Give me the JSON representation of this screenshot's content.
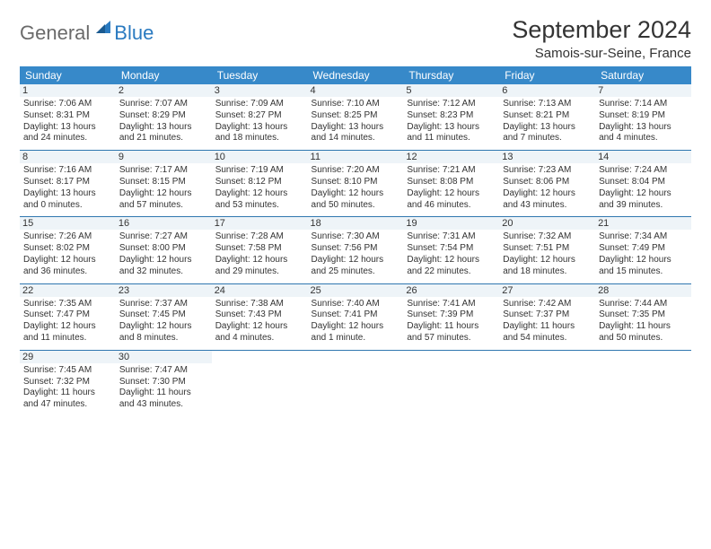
{
  "logo": {
    "general": "General",
    "blue": "Blue"
  },
  "title": "September 2024",
  "location": "Samois-sur-Seine, France",
  "weekdays": [
    "Sunday",
    "Monday",
    "Tuesday",
    "Wednesday",
    "Thursday",
    "Friday",
    "Saturday"
  ],
  "colors": {
    "header_bg": "#3789c9",
    "header_text": "#ffffff",
    "daynum_bg": "#eef4f8",
    "rule": "#3077b0",
    "logo_gray": "#6a6a6a",
    "logo_blue": "#2a7ac0",
    "text": "#333333",
    "background": "#ffffff"
  },
  "days": [
    {
      "n": "1",
      "sr": "7:06 AM",
      "ss": "8:31 PM",
      "dl1": "13 hours",
      "dl2": "and 24 minutes."
    },
    {
      "n": "2",
      "sr": "7:07 AM",
      "ss": "8:29 PM",
      "dl1": "13 hours",
      "dl2": "and 21 minutes."
    },
    {
      "n": "3",
      "sr": "7:09 AM",
      "ss": "8:27 PM",
      "dl1": "13 hours",
      "dl2": "and 18 minutes."
    },
    {
      "n": "4",
      "sr": "7:10 AM",
      "ss": "8:25 PM",
      "dl1": "13 hours",
      "dl2": "and 14 minutes."
    },
    {
      "n": "5",
      "sr": "7:12 AM",
      "ss": "8:23 PM",
      "dl1": "13 hours",
      "dl2": "and 11 minutes."
    },
    {
      "n": "6",
      "sr": "7:13 AM",
      "ss": "8:21 PM",
      "dl1": "13 hours",
      "dl2": "and 7 minutes."
    },
    {
      "n": "7",
      "sr": "7:14 AM",
      "ss": "8:19 PM",
      "dl1": "13 hours",
      "dl2": "and 4 minutes."
    },
    {
      "n": "8",
      "sr": "7:16 AM",
      "ss": "8:17 PM",
      "dl1": "13 hours",
      "dl2": "and 0 minutes."
    },
    {
      "n": "9",
      "sr": "7:17 AM",
      "ss": "8:15 PM",
      "dl1": "12 hours",
      "dl2": "and 57 minutes."
    },
    {
      "n": "10",
      "sr": "7:19 AM",
      "ss": "8:12 PM",
      "dl1": "12 hours",
      "dl2": "and 53 minutes."
    },
    {
      "n": "11",
      "sr": "7:20 AM",
      "ss": "8:10 PM",
      "dl1": "12 hours",
      "dl2": "and 50 minutes."
    },
    {
      "n": "12",
      "sr": "7:21 AM",
      "ss": "8:08 PM",
      "dl1": "12 hours",
      "dl2": "and 46 minutes."
    },
    {
      "n": "13",
      "sr": "7:23 AM",
      "ss": "8:06 PM",
      "dl1": "12 hours",
      "dl2": "and 43 minutes."
    },
    {
      "n": "14",
      "sr": "7:24 AM",
      "ss": "8:04 PM",
      "dl1": "12 hours",
      "dl2": "and 39 minutes."
    },
    {
      "n": "15",
      "sr": "7:26 AM",
      "ss": "8:02 PM",
      "dl1": "12 hours",
      "dl2": "and 36 minutes."
    },
    {
      "n": "16",
      "sr": "7:27 AM",
      "ss": "8:00 PM",
      "dl1": "12 hours",
      "dl2": "and 32 minutes."
    },
    {
      "n": "17",
      "sr": "7:28 AM",
      "ss": "7:58 PM",
      "dl1": "12 hours",
      "dl2": "and 29 minutes."
    },
    {
      "n": "18",
      "sr": "7:30 AM",
      "ss": "7:56 PM",
      "dl1": "12 hours",
      "dl2": "and 25 minutes."
    },
    {
      "n": "19",
      "sr": "7:31 AM",
      "ss": "7:54 PM",
      "dl1": "12 hours",
      "dl2": "and 22 minutes."
    },
    {
      "n": "20",
      "sr": "7:32 AM",
      "ss": "7:51 PM",
      "dl1": "12 hours",
      "dl2": "and 18 minutes."
    },
    {
      "n": "21",
      "sr": "7:34 AM",
      "ss": "7:49 PM",
      "dl1": "12 hours",
      "dl2": "and 15 minutes."
    },
    {
      "n": "22",
      "sr": "7:35 AM",
      "ss": "7:47 PM",
      "dl1": "12 hours",
      "dl2": "and 11 minutes."
    },
    {
      "n": "23",
      "sr": "7:37 AM",
      "ss": "7:45 PM",
      "dl1": "12 hours",
      "dl2": "and 8 minutes."
    },
    {
      "n": "24",
      "sr": "7:38 AM",
      "ss": "7:43 PM",
      "dl1": "12 hours",
      "dl2": "and 4 minutes."
    },
    {
      "n": "25",
      "sr": "7:40 AM",
      "ss": "7:41 PM",
      "dl1": "12 hours",
      "dl2": "and 1 minute."
    },
    {
      "n": "26",
      "sr": "7:41 AM",
      "ss": "7:39 PM",
      "dl1": "11 hours",
      "dl2": "and 57 minutes."
    },
    {
      "n": "27",
      "sr": "7:42 AM",
      "ss": "7:37 PM",
      "dl1": "11 hours",
      "dl2": "and 54 minutes."
    },
    {
      "n": "28",
      "sr": "7:44 AM",
      "ss": "7:35 PM",
      "dl1": "11 hours",
      "dl2": "and 50 minutes."
    },
    {
      "n": "29",
      "sr": "7:45 AM",
      "ss": "7:32 PM",
      "dl1": "11 hours",
      "dl2": "and 47 minutes."
    },
    {
      "n": "30",
      "sr": "7:47 AM",
      "ss": "7:30 PM",
      "dl1": "11 hours",
      "dl2": "and 43 minutes."
    }
  ],
  "labels": {
    "sunrise": "Sunrise: ",
    "sunset": "Sunset: ",
    "daylight": "Daylight: "
  }
}
